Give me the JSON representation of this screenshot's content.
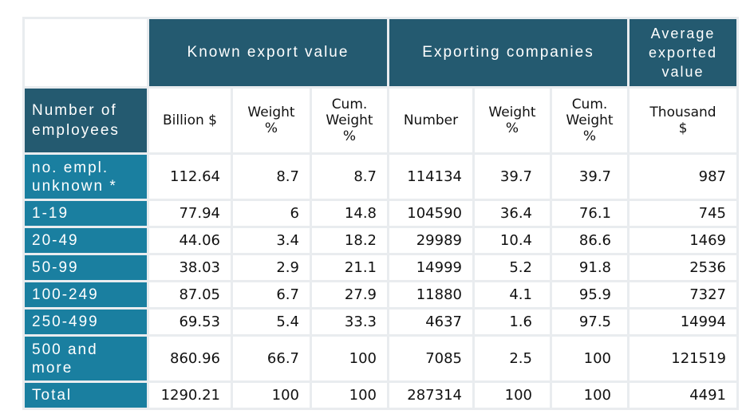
{
  "header": {
    "groups": {
      "known_export_value": "Known export value",
      "exporting_companies": "Exporting companies",
      "average_exported_value": [
        "Average",
        "exported",
        "value"
      ]
    },
    "corner": [
      "Number of",
      "employees"
    ],
    "subheaders": {
      "billion": "Billion $",
      "weight_1": [
        "Weight",
        "%"
      ],
      "cum_weight_1": [
        "Cum.",
        "Weight",
        "%"
      ],
      "number": "Number",
      "weight_2": [
        "Weight",
        "%"
      ],
      "cum_weight_2": [
        "Cum.",
        "Weight",
        "%"
      ],
      "thousand": [
        "Thousand",
        "$"
      ]
    }
  },
  "rows": [
    {
      "label": [
        "no. empl.",
        "unknown *"
      ],
      "values": [
        "112.64",
        "8.7",
        "8.7",
        "114134",
        "39.7",
        "39.7",
        "987"
      ]
    },
    {
      "label": [
        "1-19"
      ],
      "values": [
        "77.94",
        "6",
        "14.8",
        "104590",
        "36.4",
        "76.1",
        "745"
      ]
    },
    {
      "label": [
        "20-49"
      ],
      "values": [
        "44.06",
        "3.4",
        "18.2",
        "29989",
        "10.4",
        "86.6",
        "1469"
      ]
    },
    {
      "label": [
        "50-99"
      ],
      "values": [
        "38.03",
        "2.9",
        "21.1",
        "14999",
        "5.2",
        "91.8",
        "2536"
      ]
    },
    {
      "label": [
        "100-249"
      ],
      "values": [
        "87.05",
        "6.7",
        "27.9",
        "11880",
        "4.1",
        "95.9",
        "7327"
      ]
    },
    {
      "label": [
        "250-499"
      ],
      "values": [
        "69.53",
        "5.4",
        "33.3",
        "4637",
        "1.6",
        "97.5",
        "14994"
      ]
    },
    {
      "label": [
        "500 and",
        "more"
      ],
      "values": [
        "860.96",
        "66.7",
        "100",
        "7085",
        "2.5",
        "100",
        "121519"
      ]
    },
    {
      "label": [
        "Total"
      ],
      "values": [
        "1290.21",
        "100",
        "100",
        "287314",
        "100",
        "100",
        "4491"
      ]
    }
  ]
}
